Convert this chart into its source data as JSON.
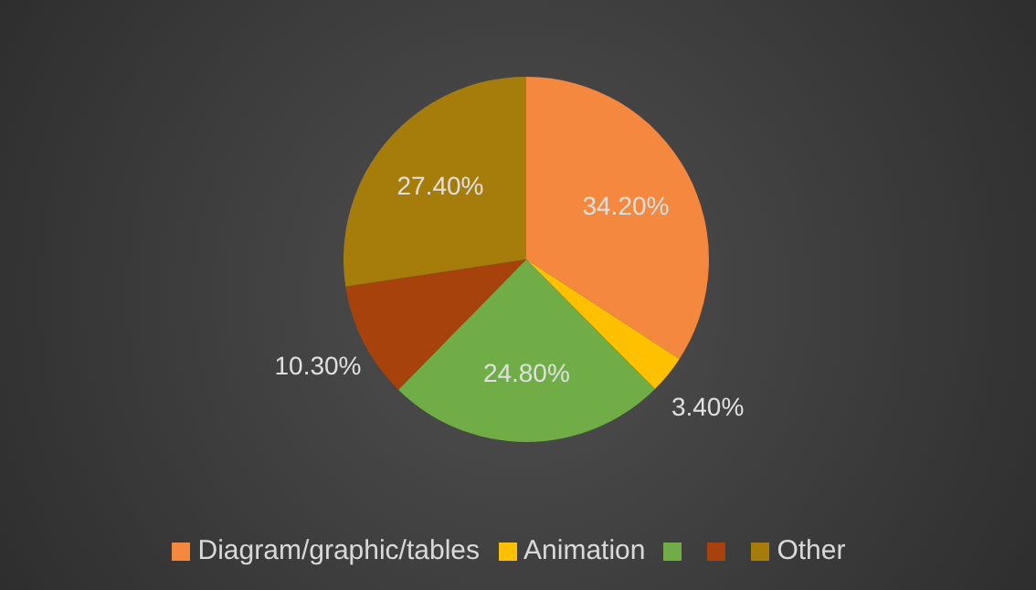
{
  "chart_data": {
    "type": "pie",
    "categories": [
      "Diagram/graphic/tables",
      "Animation",
      null,
      null,
      "Other"
    ],
    "values": [
      34.2,
      3.4,
      24.8,
      10.3,
      27.4
    ],
    "colors": [
      "#f5883f",
      "#ffc000",
      "#70ad47",
      "#a8420d",
      "#a67c0a"
    ],
    "value_labels": [
      "34.20%",
      "3.40%",
      "24.80%",
      "10.30%",
      "27.40%"
    ],
    "legend": "bottom"
  }
}
